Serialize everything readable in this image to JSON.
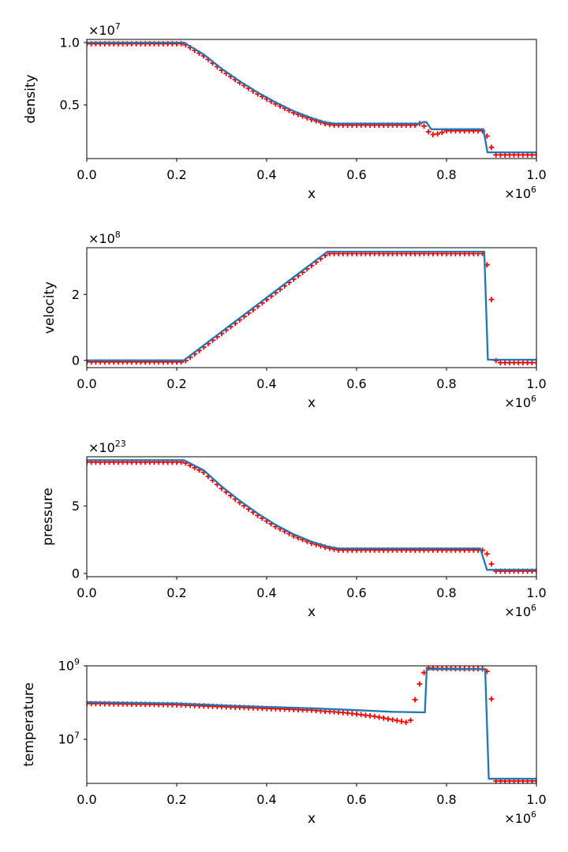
{
  "figure": {
    "background": "#ffffff",
    "description": "Shock-tube test: analytic solution (blue line) vs numerical data (red plus markers), four stacked subplots"
  },
  "style": {
    "line_color": "#1f77b4",
    "marker_color": "#ff0000",
    "axis_color": "#000000",
    "text_color": "#000000"
  },
  "chart_data": [
    {
      "type": "line",
      "title": "",
      "xlabel": "x",
      "ylabel": "density",
      "yscale": "linear",
      "xlim": [
        0,
        1
      ],
      "ylim": [
        0.07,
        1.025
      ],
      "xticks": [
        {
          "v": 0,
          "label": "0.0"
        },
        {
          "v": 0.2,
          "label": "0.2"
        },
        {
          "v": 0.4,
          "label": "0.4"
        },
        {
          "v": 0.6,
          "label": "0.6"
        },
        {
          "v": 0.8,
          "label": "0.8"
        },
        {
          "v": 1.0,
          "label": "1.0"
        }
      ],
      "yticks": [
        {
          "v": 0.5,
          "label": "0.5"
        },
        {
          "v": 1.0,
          "label": "1.0"
        }
      ],
      "y_offset": {
        "base": "×10",
        "exp": "7"
      },
      "x_offset": {
        "base": "×10",
        "exp": "6"
      },
      "grid": false,
      "legend": null,
      "series": [
        {
          "name": "solution-line",
          "role": "line",
          "points": [
            [
              0,
              1.0
            ],
            [
              0.216,
              1.0
            ],
            [
              0.26,
              0.905
            ],
            [
              0.3,
              0.79
            ],
            [
              0.34,
              0.69
            ],
            [
              0.38,
              0.6
            ],
            [
              0.42,
              0.52
            ],
            [
              0.46,
              0.45
            ],
            [
              0.5,
              0.395
            ],
            [
              0.53,
              0.36
            ],
            [
              0.55,
              0.35
            ],
            [
              0.737,
              0.35
            ],
            [
              0.749,
              0.363
            ],
            [
              0.755,
              0.363
            ],
            [
              0.766,
              0.305
            ],
            [
              0.882,
              0.305
            ],
            [
              0.891,
              0.12
            ],
            [
              1.0,
              0.12
            ]
          ]
        },
        {
          "name": "numerical-markers",
          "role": "markers",
          "n": 101,
          "points": [
            [
              0,
              0.99
            ],
            [
              0.216,
              0.99
            ],
            [
              0.26,
              0.893
            ],
            [
              0.3,
              0.778
            ],
            [
              0.34,
              0.678
            ],
            [
              0.38,
              0.588
            ],
            [
              0.42,
              0.508
            ],
            [
              0.46,
              0.438
            ],
            [
              0.5,
              0.383
            ],
            [
              0.53,
              0.35
            ],
            [
              0.55,
              0.338
            ],
            [
              0.73,
              0.338
            ],
            [
              0.74,
              0.35
            ],
            [
              0.75,
              0.33
            ],
            [
              0.76,
              0.285
            ],
            [
              0.77,
              0.263
            ],
            [
              0.78,
              0.268
            ],
            [
              0.8,
              0.292
            ],
            [
              0.88,
              0.292
            ],
            [
              0.89,
              0.25
            ],
            [
              0.9,
              0.16
            ],
            [
              0.91,
              0.1
            ],
            [
              1.0,
              0.1
            ]
          ]
        }
      ]
    },
    {
      "type": "line",
      "title": "",
      "xlabel": "x",
      "ylabel": "velocity",
      "yscale": "linear",
      "xlim": [
        0,
        1
      ],
      "ylim": [
        -0.22,
        3.42
      ],
      "xticks": [
        {
          "v": 0,
          "label": "0.0"
        },
        {
          "v": 0.2,
          "label": "0.2"
        },
        {
          "v": 0.4,
          "label": "0.4"
        },
        {
          "v": 0.6,
          "label": "0.6"
        },
        {
          "v": 0.8,
          "label": "0.8"
        },
        {
          "v": 1.0,
          "label": "1.0"
        }
      ],
      "yticks": [
        {
          "v": 0,
          "label": "0"
        },
        {
          "v": 2,
          "label": "2"
        }
      ],
      "y_offset": {
        "base": "×10",
        "exp": "8"
      },
      "x_offset": {
        "base": "×10",
        "exp": "6"
      },
      "grid": false,
      "legend": null,
      "series": [
        {
          "name": "solution-line",
          "role": "line",
          "points": [
            [
              0,
              0
            ],
            [
              0.216,
              0
            ],
            [
              0.535,
              3.3
            ],
            [
              0.884,
              3.3
            ],
            [
              0.892,
              0.02
            ],
            [
              1.0,
              0.02
            ]
          ]
        },
        {
          "name": "numerical-markers",
          "role": "markers",
          "n": 101,
          "points": [
            [
              0,
              -0.05
            ],
            [
              0.216,
              -0.05
            ],
            [
              0.535,
              3.24
            ],
            [
              0.88,
              3.24
            ],
            [
              0.89,
              2.9
            ],
            [
              0.9,
              1.85
            ],
            [
              0.905,
              0.15
            ],
            [
              0.912,
              -0.07
            ],
            [
              1.0,
              -0.07
            ]
          ]
        }
      ]
    },
    {
      "type": "line",
      "title": "",
      "xlabel": "x",
      "ylabel": "pressure",
      "yscale": "linear",
      "xlim": [
        0,
        1
      ],
      "ylim": [
        -0.24,
        8.65
      ],
      "xticks": [
        {
          "v": 0,
          "label": "0.0"
        },
        {
          "v": 0.2,
          "label": "0.2"
        },
        {
          "v": 0.4,
          "label": "0.4"
        },
        {
          "v": 0.6,
          "label": "0.6"
        },
        {
          "v": 0.8,
          "label": "0.8"
        },
        {
          "v": 1.0,
          "label": "1.0"
        }
      ],
      "yticks": [
        {
          "v": 0,
          "label": "0"
        },
        {
          "v": 5,
          "label": "5"
        }
      ],
      "y_offset": {
        "base": "×10",
        "exp": "23"
      },
      "x_offset": {
        "base": "×10",
        "exp": "6"
      },
      "grid": false,
      "legend": null,
      "series": [
        {
          "name": "solution-line",
          "role": "line",
          "points": [
            [
              0,
              8.4
            ],
            [
              0.216,
              8.4
            ],
            [
              0.26,
              7.65
            ],
            [
              0.3,
              6.45
            ],
            [
              0.34,
              5.4
            ],
            [
              0.38,
              4.45
            ],
            [
              0.42,
              3.6
            ],
            [
              0.46,
              2.9
            ],
            [
              0.5,
              2.35
            ],
            [
              0.535,
              2.0
            ],
            [
              0.56,
              1.85
            ],
            [
              0.875,
              1.85
            ],
            [
              0.89,
              0.27
            ],
            [
              1.0,
              0.27
            ]
          ]
        },
        {
          "name": "numerical-markers",
          "role": "markers",
          "n": 101,
          "points": [
            [
              0,
              8.25
            ],
            [
              0.216,
              8.25
            ],
            [
              0.26,
              7.5
            ],
            [
              0.3,
              6.3
            ],
            [
              0.34,
              5.25
            ],
            [
              0.38,
              4.3
            ],
            [
              0.42,
              3.47
            ],
            [
              0.46,
              2.78
            ],
            [
              0.5,
              2.24
            ],
            [
              0.535,
              1.9
            ],
            [
              0.56,
              1.73
            ],
            [
              0.87,
              1.73
            ],
            [
              0.88,
              1.72
            ],
            [
              0.89,
              1.45
            ],
            [
              0.9,
              0.7
            ],
            [
              0.91,
              0.17
            ],
            [
              1.0,
              0.17
            ]
          ]
        }
      ]
    },
    {
      "type": "line",
      "title": "",
      "xlabel": "x",
      "ylabel": "temperature",
      "yscale": "log",
      "xlim": [
        0,
        1
      ],
      "ylim": [
        630000,
        1000000000
      ],
      "xticks": [
        {
          "v": 0,
          "label": "0.0"
        },
        {
          "v": 0.2,
          "label": "0.2"
        },
        {
          "v": 0.4,
          "label": "0.4"
        },
        {
          "v": 0.6,
          "label": "0.6"
        },
        {
          "v": 0.8,
          "label": "0.8"
        },
        {
          "v": 1.0,
          "label": "1.0"
        }
      ],
      "yticks": [
        {
          "v": 10000000,
          "base": "10",
          "exp": "7"
        },
        {
          "v": 1000000000,
          "base": "10",
          "exp": "9"
        }
      ],
      "y_offset": null,
      "x_offset": {
        "base": "×10",
        "exp": "6"
      },
      "grid": false,
      "legend": null,
      "series": [
        {
          "name": "solution-line",
          "role": "line",
          "points": [
            [
              0,
              102000000
            ],
            [
              0.2,
              94000000
            ],
            [
              0.3,
              84000000
            ],
            [
              0.4,
              76000000
            ],
            [
              0.5,
              70000000
            ],
            [
              0.6,
              62000000
            ],
            [
              0.68,
              56000000
            ],
            [
              0.752,
              54000000
            ],
            [
              0.756,
              810000000
            ],
            [
              0.886,
              810000000
            ],
            [
              0.894,
              840000
            ],
            [
              1.0,
              840000
            ]
          ]
        },
        {
          "name": "numerical-markers",
          "role": "markers",
          "n": 101,
          "points": [
            [
              0,
              94000000
            ],
            [
              0.2,
              87000000
            ],
            [
              0.3,
              77000000
            ],
            [
              0.4,
              69000000
            ],
            [
              0.5,
              62000000
            ],
            [
              0.58,
              52000000
            ],
            [
              0.64,
              42000000
            ],
            [
              0.68,
              34000000
            ],
            [
              0.71,
              29000000
            ],
            [
              0.72,
              33000000
            ],
            [
              0.73,
              120000000
            ],
            [
              0.74,
              320000000
            ],
            [
              0.75,
              650000000
            ],
            [
              0.76,
              880000000
            ],
            [
              0.78,
              850000000
            ],
            [
              0.88,
              830000000
            ],
            [
              0.89,
              710000000
            ],
            [
              0.9,
              125000000
            ],
            [
              0.907,
              730000
            ],
            [
              1.0,
              730000
            ]
          ]
        }
      ]
    }
  ]
}
